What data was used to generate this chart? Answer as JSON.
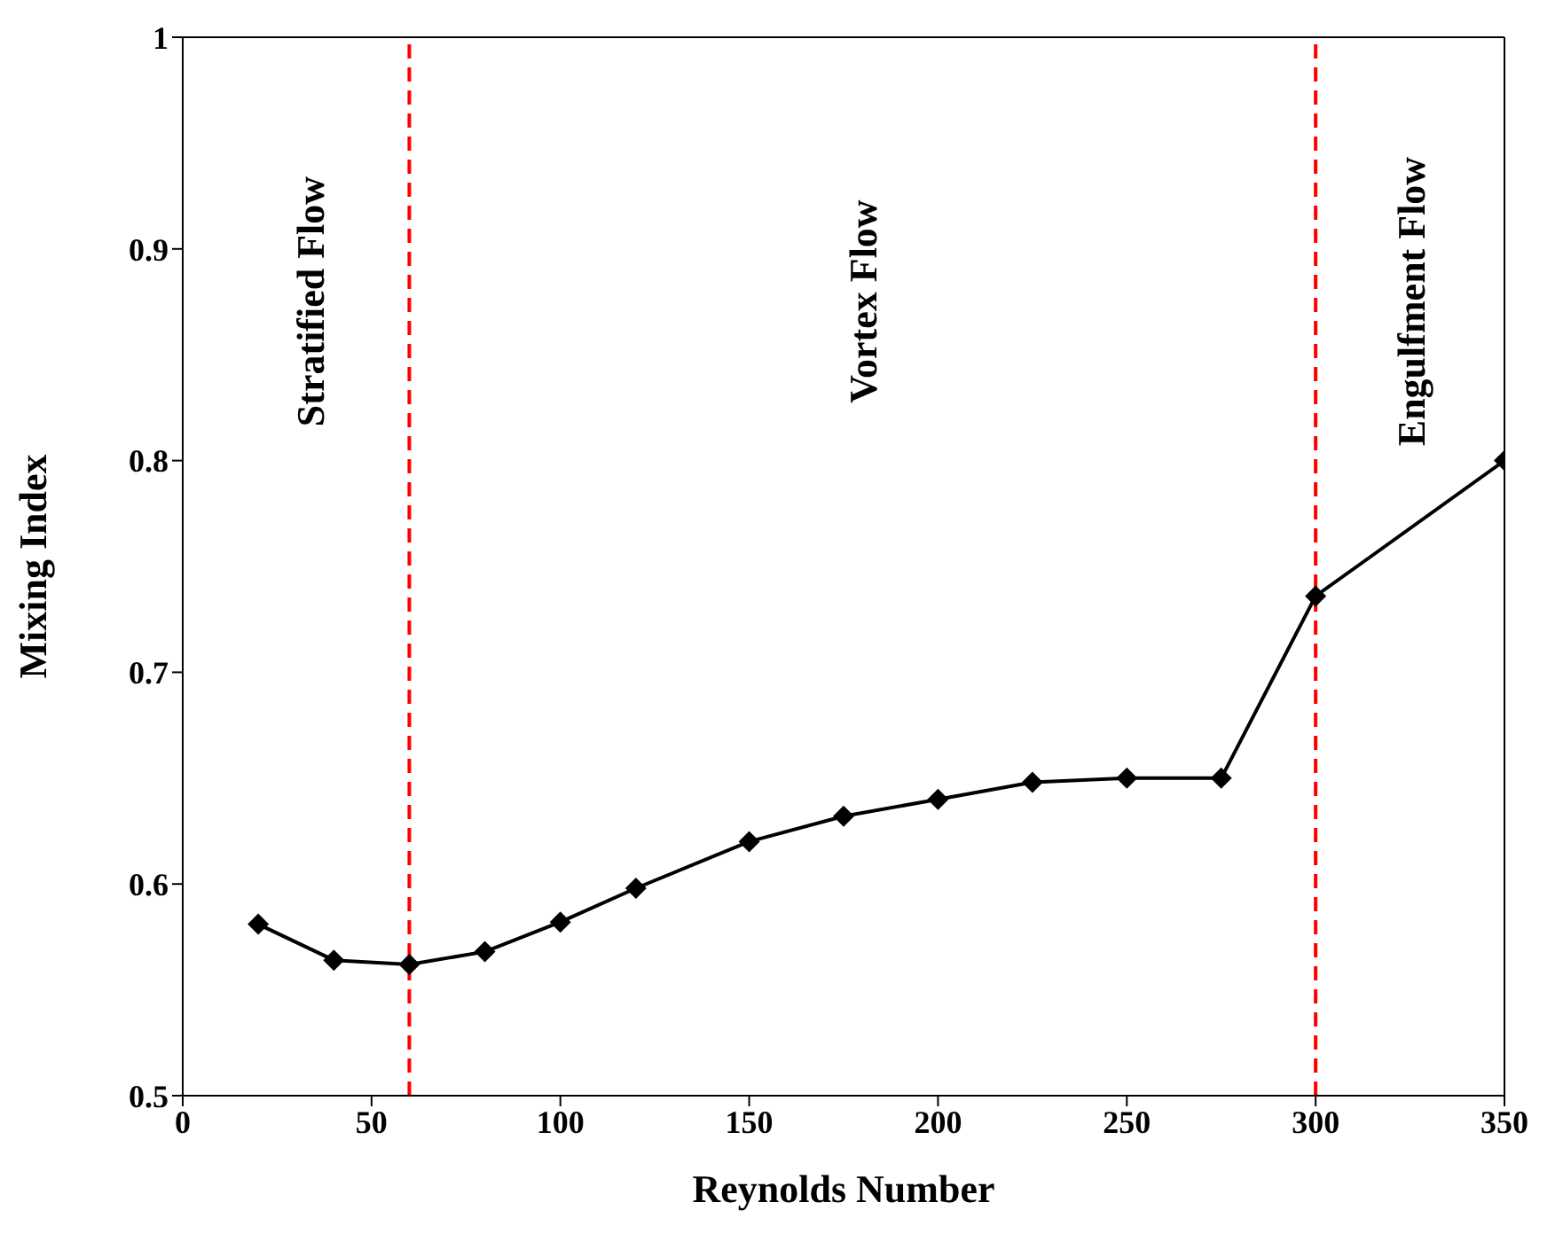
{
  "chart_data": {
    "type": "line",
    "xlabel": "Reynolds Number",
    "ylabel": "Mixing Index",
    "x": [
      20,
      40,
      60,
      80,
      100,
      120,
      150,
      175,
      200,
      225,
      250,
      275,
      300,
      350
    ],
    "series": [
      {
        "color": "#000000",
        "values": [
          0.581,
          0.564,
          0.562,
          0.568,
          0.582,
          0.598,
          0.62,
          0.632,
          0.64,
          0.648,
          0.65,
          0.65,
          0.736,
          0.8
        ]
      }
    ],
    "xlim": [
      0,
      350
    ],
    "xticks": [
      0,
      50,
      100,
      150,
      200,
      250,
      300,
      350
    ],
    "ylim": [
      0.5,
      1
    ],
    "yticks": [
      0.5,
      0.6,
      0.7,
      0.8,
      0.9,
      1
    ],
    "ref_lines": [
      {
        "axis": "x",
        "value": 60,
        "color": "#ff0000",
        "line_style": "dashed"
      },
      {
        "axis": "x",
        "value": 300,
        "color": "#ff0000",
        "line_style": "dashed"
      }
    ],
    "annotations": [
      "Stratified Flow",
      "Vortex Flow",
      "Engulfment Flow"
    ],
    "marker": "diamond",
    "line_style": "solid",
    "grid": false,
    "legend": false
  }
}
